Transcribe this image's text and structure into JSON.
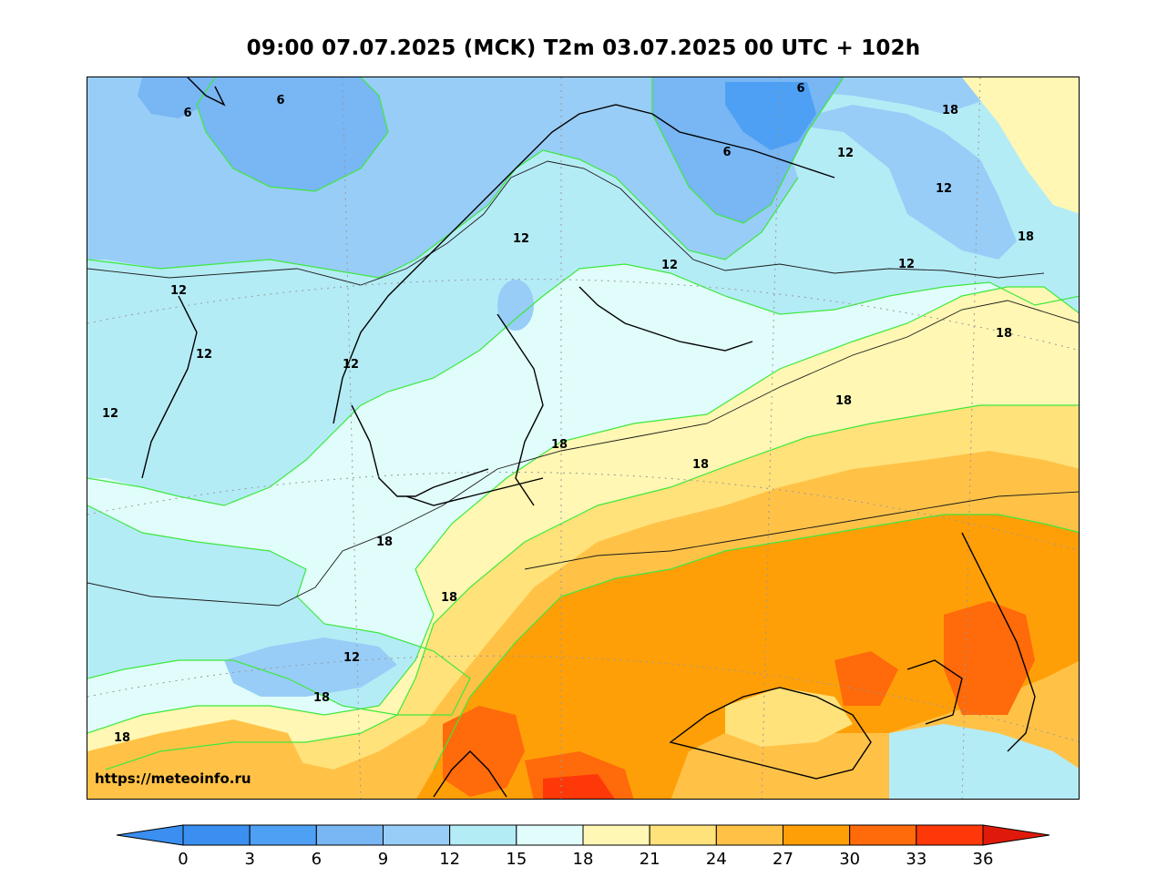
{
  "title": "09:00 07.07.2025 (MCK) T2m 03.07.2025 00 UTC + 102h",
  "credit": "https://meteoinfo.ru",
  "colors": {
    "c0": "#3a8ff0",
    "c3": "#4da0f3",
    "c6": "#78b6f4",
    "c9": "#98cdf7",
    "c12": "#b4ecf6",
    "c15": "#e0fdfb",
    "c18": "#fff7b3",
    "c21": "#ffe27a",
    "c24": "#ffc247",
    "c27": "#ff9f08",
    "c30": "#ff6a0a",
    "c33": "#ff380a",
    "c36": "#e01a0a",
    "contour": "#3ee83e",
    "coast": "#000000"
  },
  "contour_labels": [
    {
      "text": "6"
    },
    {
      "text": "6"
    },
    {
      "text": "6"
    },
    {
      "text": "6"
    },
    {
      "text": "12"
    },
    {
      "text": "12"
    },
    {
      "text": "12"
    },
    {
      "text": "12"
    },
    {
      "text": "12"
    },
    {
      "text": "12"
    },
    {
      "text": "12"
    },
    {
      "text": "12"
    },
    {
      "text": "12"
    },
    {
      "text": "12"
    },
    {
      "text": "18"
    },
    {
      "text": "18"
    },
    {
      "text": "18"
    },
    {
      "text": "18"
    },
    {
      "text": "18"
    },
    {
      "text": "18"
    },
    {
      "text": "18"
    },
    {
      "text": "18"
    },
    {
      "text": "18"
    },
    {
      "text": "18"
    },
    {
      "text": "12"
    }
  ],
  "colorbar": {
    "ticks": [
      "0",
      "3",
      "6",
      "9",
      "12",
      "15",
      "18",
      "21",
      "24",
      "27",
      "30",
      "33",
      "36"
    ]
  }
}
